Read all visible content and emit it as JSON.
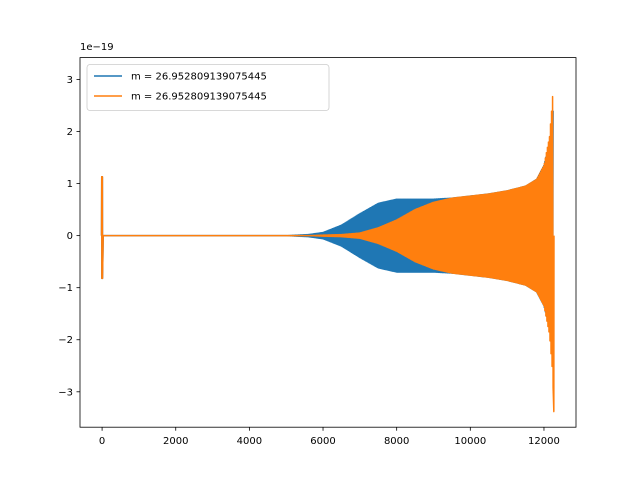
{
  "chart_data": {
    "type": "line",
    "offset_label": "1e−19",
    "xlim": [
      -600,
      12870
    ],
    "ylim": [
      -3.68,
      3.42
    ],
    "xticks": [
      0,
      2000,
      4000,
      6000,
      8000,
      10000,
      12000
    ],
    "xtick_labels": [
      "0",
      "2000",
      "4000",
      "6000",
      "8000",
      "10000",
      "12000"
    ],
    "yticks": [
      -3,
      -2,
      -1,
      0,
      1,
      2,
      3
    ],
    "ytick_labels": [
      "−3",
      "−2",
      "−1",
      "0",
      "1",
      "2",
      "3"
    ],
    "legend_position": "upper-left",
    "series": [
      {
        "name": "m = 26.952809139075445",
        "color": "#1f77b4",
        "burst": {
          "x": 0,
          "ymin": -0.82,
          "ymax": 1.13
        },
        "envelope": [
          [
            0,
            0
          ],
          [
            5000,
            0
          ],
          [
            5600,
            0.02
          ],
          [
            6000,
            0.06
          ],
          [
            6500,
            0.2
          ],
          [
            7000,
            0.42
          ],
          [
            7500,
            0.62
          ],
          [
            8000,
            0.7
          ],
          [
            8500,
            0.7
          ],
          [
            9000,
            0.7
          ],
          [
            9500,
            0.72
          ],
          [
            10000,
            0.76
          ],
          [
            10500,
            0.8
          ],
          [
            11000,
            0.86
          ],
          [
            11500,
            0.95
          ],
          [
            11800,
            1.08
          ],
          [
            12000,
            1.35
          ],
          [
            12150,
            1.8
          ],
          [
            12230,
            2.4
          ],
          [
            12260,
            2.4
          ]
        ]
      },
      {
        "name": "m = 26.952809139075445",
        "color": "#ff7f0e",
        "burst": {
          "x": 0,
          "ymin": -0.82,
          "ymax": 1.13
        },
        "envelope": [
          [
            0,
            0
          ],
          [
            5000,
            0
          ],
          [
            5600,
            0.0
          ],
          [
            6000,
            0.01
          ],
          [
            6500,
            0.02
          ],
          [
            7000,
            0.05
          ],
          [
            7500,
            0.15
          ],
          [
            8000,
            0.3
          ],
          [
            8500,
            0.5
          ],
          [
            9000,
            0.64
          ],
          [
            9500,
            0.72
          ],
          [
            10000,
            0.76
          ],
          [
            10500,
            0.8
          ],
          [
            11000,
            0.86
          ],
          [
            11500,
            0.95
          ],
          [
            11800,
            1.08
          ],
          [
            12000,
            1.35
          ],
          [
            12150,
            1.9
          ],
          [
            12230,
            2.6
          ],
          [
            12260,
            3.12
          ]
        ],
        "final_min": -3.38
      }
    ]
  }
}
